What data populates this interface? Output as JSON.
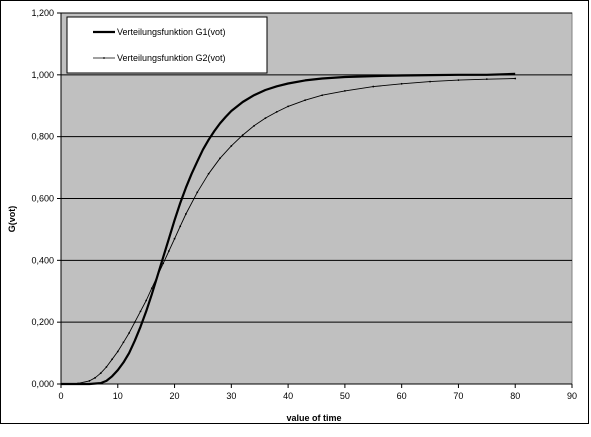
{
  "chart_data": {
    "type": "line",
    "title": "",
    "xlabel": "value of time",
    "ylabel": "G(vot)",
    "xlim": [
      0,
      90
    ],
    "ylim": [
      0,
      1.2
    ],
    "x_ticks": [
      0,
      10,
      20,
      30,
      40,
      50,
      60,
      70,
      80,
      90
    ],
    "x_tick_labels": [
      "0",
      "10",
      "20",
      "30",
      "40",
      "50",
      "60",
      "70",
      "80",
      "90"
    ],
    "y_ticks": [
      0,
      0.2,
      0.4,
      0.6,
      0.8,
      1.0,
      1.2
    ],
    "y_tick_labels": [
      "0,000",
      "0,200",
      "0,400",
      "0,600",
      "0,800",
      "1,000",
      "1,200"
    ],
    "grid": "horizontal",
    "plot_background": "#c0c0c0",
    "legend_position": "top-left",
    "series": [
      {
        "name": "Verteilungsfunktion G1(vot)",
        "color": "#000000",
        "style": "thick",
        "x": [
          0,
          5,
          7,
          8,
          9,
          10,
          11,
          12,
          13,
          14,
          15,
          16,
          17,
          18,
          19,
          20,
          21,
          22,
          23,
          24,
          25,
          26,
          27,
          28,
          29,
          30,
          32,
          34,
          36,
          38,
          40,
          43,
          46,
          50,
          55,
          60,
          65,
          70,
          75,
          80
        ],
        "y": [
          0,
          0,
          0.003,
          0.01,
          0.025,
          0.045,
          0.07,
          0.1,
          0.14,
          0.185,
          0.235,
          0.29,
          0.35,
          0.41,
          0.47,
          0.53,
          0.585,
          0.635,
          0.68,
          0.72,
          0.758,
          0.79,
          0.818,
          0.843,
          0.864,
          0.883,
          0.912,
          0.934,
          0.951,
          0.963,
          0.972,
          0.982,
          0.988,
          0.993,
          0.996,
          0.998,
          0.999,
          1.0,
          1.0,
          1.003
        ]
      },
      {
        "name": "Verteilungsfunktion G2(vot)",
        "color": "#000000",
        "style": "thin",
        "x": [
          0,
          3,
          5,
          6,
          7,
          8,
          9,
          10,
          11,
          12,
          13,
          14,
          15,
          16,
          17,
          18,
          19,
          20,
          21,
          22,
          24,
          26,
          28,
          30,
          32,
          34,
          36,
          38,
          40,
          43,
          46,
          50,
          55,
          60,
          65,
          70,
          75,
          80
        ],
        "y": [
          0,
          0.002,
          0.01,
          0.02,
          0.035,
          0.055,
          0.08,
          0.105,
          0.135,
          0.165,
          0.2,
          0.235,
          0.27,
          0.31,
          0.35,
          0.39,
          0.43,
          0.47,
          0.51,
          0.55,
          0.62,
          0.68,
          0.73,
          0.77,
          0.805,
          0.835,
          0.86,
          0.88,
          0.898,
          0.918,
          0.934,
          0.948,
          0.962,
          0.971,
          0.978,
          0.983,
          0.986,
          0.988
        ]
      }
    ]
  }
}
